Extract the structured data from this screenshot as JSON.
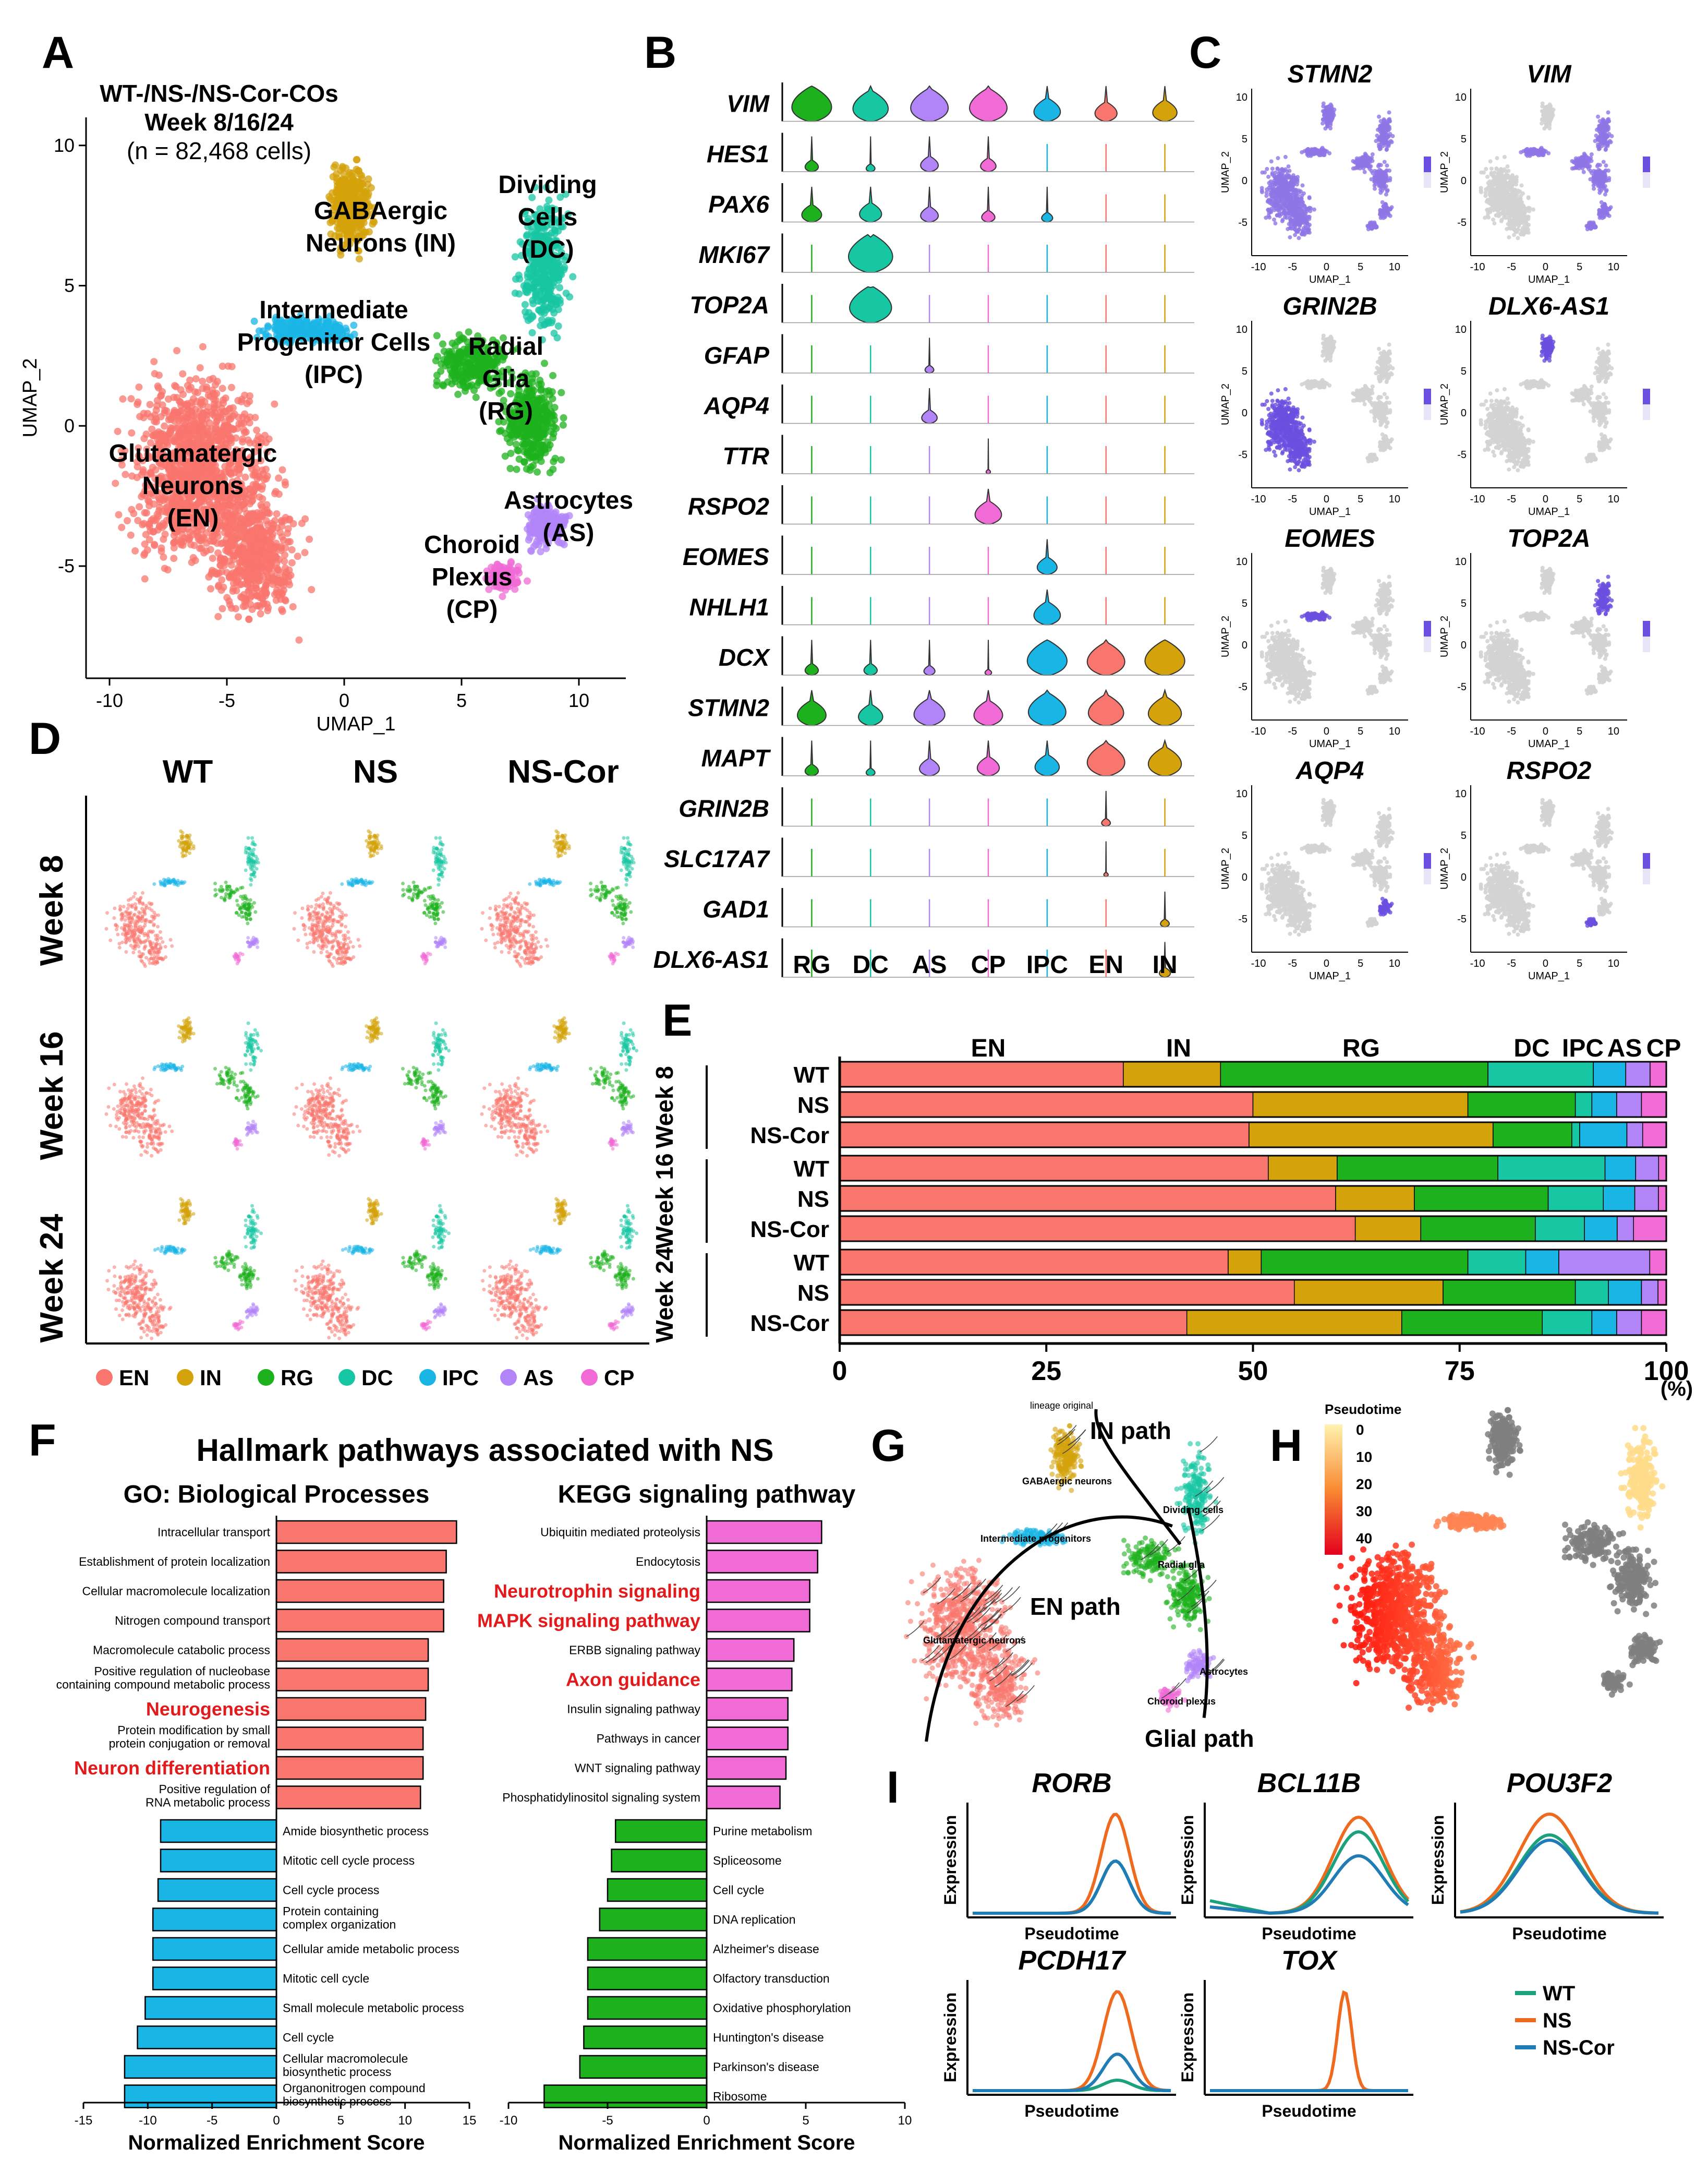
{
  "colors": {
    "EN": "#F8766D",
    "IN": "#D4A20A",
    "RG": "#1DB11D",
    "DC": "#17C6A3",
    "IPC": "#19B5E5",
    "AS": "#B184F8",
    "CP": "#F06BD5",
    "red": "#E31A1C",
    "wt": "#1BA27C",
    "ns": "#EE6A1E",
    "nscor": "#1F7CB4"
  },
  "panelA": {
    "letter": "A",
    "title1": "WT-/NS-/NS-Cor-COs",
    "title2": "Week 8/16/24",
    "count": "(n = 82,468 cells)",
    "xlabel": "UMAP_1",
    "ylabel": "UMAP_2",
    "xticks": [
      "-10",
      "-5",
      "0",
      "5",
      "10"
    ],
    "yticks": [
      "10",
      "5",
      "0",
      "-5"
    ],
    "clusters": [
      {
        "key": "IN",
        "lines": [
          "GABAergic",
          "Neurons (IN)"
        ]
      },
      {
        "key": "DC",
        "lines": [
          "Dividing",
          "Cells",
          "(DC)"
        ]
      },
      {
        "key": "IPC",
        "lines": [
          "Intermediate",
          "Progenitor Cells",
          "(IPC)"
        ]
      },
      {
        "key": "RG",
        "lines": [
          "Radial",
          "Glia",
          "(RG)"
        ]
      },
      {
        "key": "EN",
        "lines": [
          "Glutamatergic",
          "Neurons",
          "(EN)"
        ]
      },
      {
        "key": "AS",
        "lines": [
          "Astrocytes",
          "(AS)"
        ]
      },
      {
        "key": "CP",
        "lines": [
          "Choroid",
          "Plexus",
          "(CP)"
        ]
      }
    ]
  },
  "panelB": {
    "letter": "B",
    "genes": [
      "VIM",
      "HES1",
      "PAX6",
      "MKI67",
      "TOP2A",
      "GFAP",
      "AQP4",
      "TTR",
      "RSPO2",
      "EOMES",
      "NHLH1",
      "DCX",
      "STMN2",
      "MAPT",
      "GRIN2B",
      "SLC17A7",
      "GAD1",
      "DLX6-AS1"
    ],
    "celltypes": [
      "RG",
      "DC",
      "AS",
      "CP",
      "IPC",
      "EN",
      "IN"
    ],
    "widths": [
      [
        0.9,
        0.8,
        0.85,
        0.85,
        0.6,
        0.5,
        0.55
      ],
      [
        0.3,
        0.2,
        0.4,
        0.35,
        0.03,
        0.03,
        0.03
      ],
      [
        0.45,
        0.5,
        0.4,
        0.3,
        0.25,
        0.03,
        0.03
      ],
      [
        0.03,
        1.0,
        0.03,
        0.03,
        0.03,
        0.03,
        0.03
      ],
      [
        0.03,
        0.95,
        0.03,
        0.03,
        0.03,
        0.03,
        0.03
      ],
      [
        0.03,
        0.03,
        0.2,
        0.03,
        0.03,
        0.03,
        0.03
      ],
      [
        0.03,
        0.03,
        0.35,
        0.03,
        0.03,
        0.03,
        0.03
      ],
      [
        0.03,
        0.03,
        0.03,
        0.1,
        0.03,
        0.03,
        0.03
      ],
      [
        0.03,
        0.03,
        0.03,
        0.6,
        0.03,
        0.03,
        0.03
      ],
      [
        0.03,
        0.03,
        0.03,
        0.03,
        0.45,
        0.03,
        0.03
      ],
      [
        0.03,
        0.03,
        0.03,
        0.03,
        0.6,
        0.03,
        0.03
      ],
      [
        0.3,
        0.3,
        0.25,
        0.15,
        0.9,
        0.85,
        0.9
      ],
      [
        0.65,
        0.55,
        0.7,
        0.65,
        0.85,
        0.8,
        0.75
      ],
      [
        0.3,
        0.2,
        0.45,
        0.5,
        0.55,
        0.85,
        0.75
      ],
      [
        0.03,
        0.03,
        0.03,
        0.03,
        0.03,
        0.2,
        0.03
      ],
      [
        0.03,
        0.03,
        0.03,
        0.03,
        0.03,
        0.1,
        0.03
      ],
      [
        0.03,
        0.03,
        0.03,
        0.03,
        0.03,
        0.03,
        0.2
      ],
      [
        0.03,
        0.03,
        0.03,
        0.03,
        0.03,
        0.03,
        0.25
      ]
    ]
  },
  "panelC": {
    "letter": "C",
    "genes": [
      "STMN2",
      "VIM",
      "GRIN2B",
      "DLX6-AS1",
      "EOMES",
      "TOP2A",
      "AQP4",
      "RSPO2"
    ],
    "xlabel": "UMAP_1",
    "ylabel": "UMAP_2",
    "xticks": [
      "-10",
      "-5",
      "0",
      "5",
      "10"
    ],
    "yticks": [
      "10",
      "5",
      "0",
      "-5"
    ]
  },
  "panelD": {
    "letter": "D",
    "cols": [
      "WT",
      "NS",
      "NS-Cor"
    ],
    "rows": [
      "Week 8",
      "Week 16",
      "Week 24"
    ],
    "legend": [
      "EN",
      "IN",
      "RG",
      "DC",
      "IPC",
      "AS",
      "CP"
    ]
  },
  "panelE": {
    "letter": "E",
    "headers": [
      "EN",
      "IN",
      "RG",
      "DC",
      "IPC",
      "AS",
      "CP"
    ],
    "weeks": [
      "Week 8",
      "Week 16",
      "Week 24"
    ],
    "xticks": [
      "0",
      "25",
      "50",
      "75",
      "100"
    ],
    "unit": "(%)",
    "categories": [
      "EN",
      "IN",
      "RG",
      "DC",
      "IPC",
      "AS",
      "CP"
    ],
    "rows": [
      {
        "label": "WT",
        "values": [
          35,
          12,
          33,
          13,
          4,
          3,
          2
        ]
      },
      {
        "label": "NS",
        "values": [
          50,
          26,
          13,
          2,
          3,
          3,
          3
        ]
      },
      {
        "label": "NS-Cor",
        "values": [
          52,
          31,
          10,
          1,
          6,
          2,
          3
        ]
      },
      {
        "label": "WT",
        "values": [
          56,
          9,
          21,
          14,
          4,
          3,
          1
        ]
      },
      {
        "label": "NS",
        "values": [
          63,
          10,
          17,
          7,
          4,
          3,
          1
        ]
      },
      {
        "label": "NS-Cor",
        "values": [
          63,
          8,
          14,
          6,
          4,
          2,
          4
        ]
      },
      {
        "label": "WT",
        "values": [
          47,
          4,
          25,
          7,
          4,
          11,
          2
        ]
      },
      {
        "label": "NS",
        "values": [
          55,
          18,
          16,
          4,
          4,
          2,
          1
        ]
      },
      {
        "label": "NS-Cor",
        "values": [
          42,
          26,
          17,
          6,
          3,
          3,
          3
        ]
      }
    ]
  },
  "panelF": {
    "letter": "F",
    "title": "Hallmark pathways associated with NS",
    "go": {
      "subtitle": "GO: Biological  Processes",
      "xlabel": "Normalized Enrichment Score",
      "xlim": [
        -15,
        15
      ],
      "xticks": [
        "-15",
        "-10",
        "-5",
        "0",
        "5",
        "10",
        "15"
      ],
      "items": [
        {
          "lines": [
            "Intracellular transport"
          ],
          "value": 14,
          "hl": false
        },
        {
          "lines": [
            "Establishment of protein localization"
          ],
          "value": 13.2,
          "hl": false
        },
        {
          "lines": [
            "Cellular macromolecule localization"
          ],
          "value": 13,
          "hl": false
        },
        {
          "lines": [
            "Nitrogen compound transport"
          ],
          "value": 13,
          "hl": false
        },
        {
          "lines": [
            "Macromolecule catabolic process"
          ],
          "value": 11.8,
          "hl": false
        },
        {
          "lines": [
            "Positive regulation of nucleobase",
            "containing compound metabolic process"
          ],
          "value": 11.8,
          "hl": false
        },
        {
          "lines": [
            "Neurogenesis"
          ],
          "value": 11.6,
          "hl": true
        },
        {
          "lines": [
            "Protein modification by small",
            "protein conjugation or removal"
          ],
          "value": 11.4,
          "hl": false
        },
        {
          "lines": [
            "Neuron differentiation"
          ],
          "value": 11.4,
          "hl": true
        },
        {
          "lines": [
            "Positive regulation of",
            "RNA metabolic process"
          ],
          "value": 11.2,
          "hl": false
        },
        {
          "lines": [
            "Amide biosynthetic process"
          ],
          "value": -9,
          "hl": false
        },
        {
          "lines": [
            "Mitotic cell cycle process"
          ],
          "value": -9,
          "hl": false
        },
        {
          "lines": [
            "Cell cycle process"
          ],
          "value": -9.2,
          "hl": false
        },
        {
          "lines": [
            "Protein containing",
            "complex organization"
          ],
          "value": -9.6,
          "hl": false
        },
        {
          "lines": [
            "Cellular amide metabolic process"
          ],
          "value": -9.6,
          "hl": false
        },
        {
          "lines": [
            "Mitotic cell cycle"
          ],
          "value": -9.6,
          "hl": false
        },
        {
          "lines": [
            "Small molecule metabolic process"
          ],
          "value": -10.2,
          "hl": false
        },
        {
          "lines": [
            "Cell cycle"
          ],
          "value": -10.8,
          "hl": false
        },
        {
          "lines": [
            "Cellular macromolecule",
            "biosynthetic process"
          ],
          "value": -11.8,
          "hl": false
        },
        {
          "lines": [
            "Organonitrogen compound",
            "biosynthetic process"
          ],
          "value": -11.8,
          "hl": false
        }
      ]
    },
    "kegg": {
      "subtitle": "KEGG signaling pathway",
      "xlabel": "Normalized Enrichment Score",
      "xlim": [
        -10,
        10
      ],
      "xticks": [
        "-10",
        "-5",
        "0",
        "5",
        "10"
      ],
      "items": [
        {
          "lines": [
            "Ubiquitin mediated proteolysis"
          ],
          "value": 5.8,
          "hl": false
        },
        {
          "lines": [
            "Endocytosis"
          ],
          "value": 5.6,
          "hl": false
        },
        {
          "lines": [
            "Neurotrophin signaling"
          ],
          "value": 5.2,
          "hl": true
        },
        {
          "lines": [
            "MAPK signaling pathway"
          ],
          "value": 5.2,
          "hl": true
        },
        {
          "lines": [
            "ERBB signaling pathway"
          ],
          "value": 4.4,
          "hl": false
        },
        {
          "lines": [
            "Axon guidance"
          ],
          "value": 4.3,
          "hl": true
        },
        {
          "lines": [
            "Insulin signaling pathway"
          ],
          "value": 4.1,
          "hl": false
        },
        {
          "lines": [
            "Pathways in cancer"
          ],
          "value": 4.1,
          "hl": false
        },
        {
          "lines": [
            "WNT signaling pathway"
          ],
          "value": 4,
          "hl": false
        },
        {
          "lines": [
            "Phosphatidylinositol  signaling system"
          ],
          "value": 3.7,
          "hl": false
        },
        {
          "lines": [
            "Purine metabolism"
          ],
          "value": -4.6,
          "hl": false
        },
        {
          "lines": [
            "Spliceosome"
          ],
          "value": -4.8,
          "hl": false
        },
        {
          "lines": [
            "Cell cycle"
          ],
          "value": -5,
          "hl": false
        },
        {
          "lines": [
            "DNA replication"
          ],
          "value": -5.4,
          "hl": false
        },
        {
          "lines": [
            "Alzheimer's disease"
          ],
          "value": -6,
          "hl": false
        },
        {
          "lines": [
            "Olfactory transduction"
          ],
          "value": -6,
          "hl": false
        },
        {
          "lines": [
            "Oxidative phosphorylation"
          ],
          "value": -6,
          "hl": false
        },
        {
          "lines": [
            "Huntington's disease"
          ],
          "value": -6.2,
          "hl": false
        },
        {
          "lines": [
            "Parkinson's disease"
          ],
          "value": -6.4,
          "hl": false
        },
        {
          "lines": [
            "Ribosome"
          ],
          "value": -8.2,
          "hl": false
        }
      ]
    }
  },
  "panelG": {
    "letter": "G",
    "lineage": "lineage original",
    "in_path": "IN path",
    "en_path": "EN path",
    "glial_path": "Glial path",
    "labels": [
      "GABAergic neurons",
      "Dividing cells",
      "Intermediate progenitors",
      "Radial glia",
      "Glutamatergic neurons",
      "Astrocytes",
      "Choroid plexus"
    ]
  },
  "panelH": {
    "letter": "H",
    "legend_title": "Pseudotime",
    "ticks": [
      "0",
      "10",
      "20",
      "30",
      "40"
    ]
  },
  "panelI": {
    "letter": "I",
    "xlabel": "Pseudotime",
    "ylabel": "Expression",
    "legend": [
      "WT",
      "NS",
      "NS-Cor"
    ],
    "genes": [
      {
        "name": "RORB",
        "center": 0.72,
        "width": 0.1,
        "amp": {
          "WT": 0.5,
          "NS": 0.95,
          "NS-Cor": 0.5
        }
      },
      {
        "name": "BCL11B",
        "center": 0.75,
        "width": 0.18,
        "amp": {
          "WT": 0.78,
          "NS": 0.92,
          "NS-Cor": 0.55
        }
      },
      {
        "name": "POU3F2",
        "center": 0.45,
        "width": 0.22,
        "amp": {
          "WT": 0.75,
          "NS": 0.95,
          "NS-Cor": 0.7
        }
      },
      {
        "name": "PCDH17",
        "center": 0.73,
        "width": 0.1,
        "amp": {
          "WT": 0.1,
          "NS": 0.95,
          "NS-Cor": 0.35
        }
      },
      {
        "name": "TOX",
        "center": 0.68,
        "width": 0.05,
        "amp": {
          "WT": 0.0,
          "NS": 0.95,
          "NS-Cor": 0.0
        }
      }
    ]
  }
}
